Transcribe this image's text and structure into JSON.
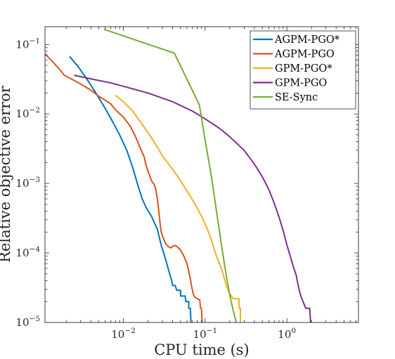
{
  "chart_data": {
    "type": "line",
    "title": "",
    "xlabel": "CPU time (s)",
    "ylabel": "Relative objective error",
    "xscale": "log",
    "yscale": "log",
    "xlim": [
      0.0011,
      7.5
    ],
    "ylim": [
      1e-05,
      0.18
    ],
    "grid": false,
    "legend_position": "top-right",
    "x_ticks": [
      {
        "value": 0.01,
        "base": "10",
        "exp": "−2"
      },
      {
        "value": 0.1,
        "base": "10",
        "exp": "−1"
      },
      {
        "value": 1,
        "base": "10",
        "exp": "0"
      }
    ],
    "y_ticks": [
      {
        "value": 1e-05,
        "base": "10",
        "exp": "−5"
      },
      {
        "value": 0.0001,
        "base": "10",
        "exp": "−4"
      },
      {
        "value": 0.001,
        "base": "10",
        "exp": "−3"
      },
      {
        "value": 0.01,
        "base": "10",
        "exp": "−2"
      },
      {
        "value": 0.1,
        "base": "10",
        "exp": "−1"
      }
    ],
    "series": [
      {
        "name": "AGPM-PGO*",
        "color": "#0072BD",
        "points": [
          [
            0.0022,
            0.067
          ],
          [
            0.0028,
            0.048
          ],
          [
            0.0035,
            0.033
          ],
          [
            0.0045,
            0.021
          ],
          [
            0.006,
            0.012
          ],
          [
            0.0075,
            0.0075
          ],
          [
            0.009,
            0.005
          ],
          [
            0.011,
            0.003
          ],
          [
            0.013,
            0.0017
          ],
          [
            0.015,
            0.00095
          ],
          [
            0.017,
            0.0006
          ],
          [
            0.019,
            0.00045
          ],
          [
            0.022,
            0.00034
          ],
          [
            0.026,
            0.00022
          ],
          [
            0.029,
            0.00013
          ],
          [
            0.032,
            9e-05
          ],
          [
            0.035,
            6.2e-05
          ],
          [
            0.037,
            4.9e-05
          ],
          [
            0.039,
            4e-05
          ],
          [
            0.04,
            3.4e-05
          ],
          [
            0.043,
            3.4e-05
          ],
          [
            0.045,
            2.9e-05
          ],
          [
            0.05,
            2.9e-05
          ],
          [
            0.05,
            2.4e-05
          ],
          [
            0.057,
            2.4e-05
          ],
          [
            0.058,
            2e-05
          ],
          [
            0.063,
            2e-05
          ],
          [
            0.063,
            1.6e-05
          ],
          [
            0.066,
            1.6e-05
          ],
          [
            0.067,
            1e-05
          ]
        ]
      },
      {
        "name": "AGPM-PGO",
        "color": "#D95319",
        "points": [
          [
            0.0011,
            0.073
          ],
          [
            0.0013,
            0.06
          ],
          [
            0.0016,
            0.046
          ],
          [
            0.0019,
            0.036
          ],
          [
            0.0023,
            0.032
          ],
          [
            0.003,
            0.027
          ],
          [
            0.004,
            0.022
          ],
          [
            0.005,
            0.018
          ],
          [
            0.007,
            0.014
          ],
          [
            0.008,
            0.0115
          ],
          [
            0.01,
            0.009
          ],
          [
            0.012,
            0.0068
          ],
          [
            0.014,
            0.0048
          ],
          [
            0.016,
            0.0033
          ],
          [
            0.018,
            0.0024
          ],
          [
            0.019,
            0.0018
          ],
          [
            0.02,
            0.0015
          ],
          [
            0.021,
            0.0013
          ],
          [
            0.022,
            0.0011
          ],
          [
            0.024,
            0.00095
          ],
          [
            0.025,
            0.0008
          ],
          [
            0.026,
            0.0006
          ],
          [
            0.027,
            0.00042
          ],
          [
            0.028,
            0.00028
          ],
          [
            0.029,
            0.0002
          ],
          [
            0.031,
            0.00016
          ],
          [
            0.033,
            0.000135
          ],
          [
            0.035,
            0.000125
          ],
          [
            0.038,
            0.000118
          ],
          [
            0.04,
            0.000125
          ],
          [
            0.043,
            0.000128
          ],
          [
            0.046,
            0.000122
          ],
          [
            0.05,
            0.00011
          ],
          [
            0.055,
            9e-05
          ],
          [
            0.06,
            7e-05
          ],
          [
            0.063,
            5.5e-05
          ],
          [
            0.066,
            4.2e-05
          ],
          [
            0.068,
            3.4e-05
          ],
          [
            0.07,
            2.9e-05
          ],
          [
            0.072,
            2.5e-05
          ],
          [
            0.075,
            2.3e-05
          ],
          [
            0.08,
            2.2e-05
          ],
          [
            0.086,
            2.1e-05
          ],
          [
            0.088,
            1.6e-05
          ],
          [
            0.09,
            1.6e-05
          ],
          [
            0.092,
            1e-05
          ]
        ]
      },
      {
        "name": "GPM-PGO*",
        "color": "#EDB120",
        "points": [
          [
            0.008,
            0.0185
          ],
          [
            0.01,
            0.015
          ],
          [
            0.013,
            0.011
          ],
          [
            0.016,
            0.0078
          ],
          [
            0.02,
            0.0054
          ],
          [
            0.025,
            0.0036
          ],
          [
            0.03,
            0.0025
          ],
          [
            0.04,
            0.0016
          ],
          [
            0.05,
            0.0011
          ],
          [
            0.06,
            0.00078
          ],
          [
            0.07,
            0.00058
          ],
          [
            0.08,
            0.00044
          ],
          [
            0.09,
            0.00034
          ],
          [
            0.1,
            0.00026
          ],
          [
            0.11,
            0.0002
          ],
          [
            0.12,
            0.00015
          ],
          [
            0.13,
            0.00011
          ],
          [
            0.14,
            8.5e-05
          ],
          [
            0.15,
            7e-05
          ],
          [
            0.16,
            5.8e-05
          ],
          [
            0.17,
            4.5e-05
          ],
          [
            0.18,
            3.5e-05
          ],
          [
            0.19,
            3e-05
          ],
          [
            0.2,
            2.6e-05
          ],
          [
            0.22,
            2.2e-05
          ],
          [
            0.26,
            2.2e-05
          ],
          [
            0.26,
            1.6e-05
          ],
          [
            0.27,
            1.6e-05
          ],
          [
            0.27,
            1e-05
          ]
        ]
      },
      {
        "name": "GPM-PGO",
        "color": "#7E2F8E",
        "points": [
          [
            0.0025,
            0.036
          ],
          [
            0.004,
            0.032
          ],
          [
            0.007,
            0.028
          ],
          [
            0.01,
            0.025
          ],
          [
            0.02,
            0.02
          ],
          [
            0.04,
            0.015
          ],
          [
            0.07,
            0.011
          ],
          [
            0.1,
            0.0085
          ],
          [
            0.15,
            0.0062
          ],
          [
            0.2,
            0.0047
          ],
          [
            0.3,
            0.003
          ],
          [
            0.4,
            0.0019
          ],
          [
            0.5,
            0.00125
          ],
          [
            0.6,
            0.00082
          ],
          [
            0.7,
            0.00052
          ],
          [
            0.8,
            0.00033
          ],
          [
            0.9,
            0.00021
          ],
          [
            1.0,
            0.00013
          ],
          [
            1.1,
            9e-05
          ],
          [
            1.2,
            6.3e-05
          ],
          [
            1.3,
            4.8e-05
          ],
          [
            1.35,
            3.8e-05
          ],
          [
            1.4,
            3.1e-05
          ],
          [
            1.45,
            2.6e-05
          ],
          [
            1.5,
            2.3e-05
          ],
          [
            1.55,
            2.1e-05
          ],
          [
            1.6,
            1.9e-05
          ],
          [
            1.7,
            1.6e-05
          ],
          [
            1.9,
            1.6e-05
          ],
          [
            1.95,
            1e-05
          ]
        ]
      },
      {
        "name": "SE-Sync",
        "color": "#77AC30",
        "points": [
          [
            0.0058,
            0.165
          ],
          [
            0.016,
            0.11
          ],
          [
            0.042,
            0.075
          ],
          [
            0.085,
            0.0135
          ],
          [
            0.1,
            0.0042
          ],
          [
            0.12,
            0.0012
          ],
          [
            0.14,
            0.00035
          ],
          [
            0.16,
            0.00012
          ],
          [
            0.18,
            5e-05
          ],
          [
            0.2,
            2.5e-05
          ],
          [
            0.22,
            1.5e-05
          ],
          [
            0.24,
            1e-05
          ]
        ]
      }
    ]
  }
}
